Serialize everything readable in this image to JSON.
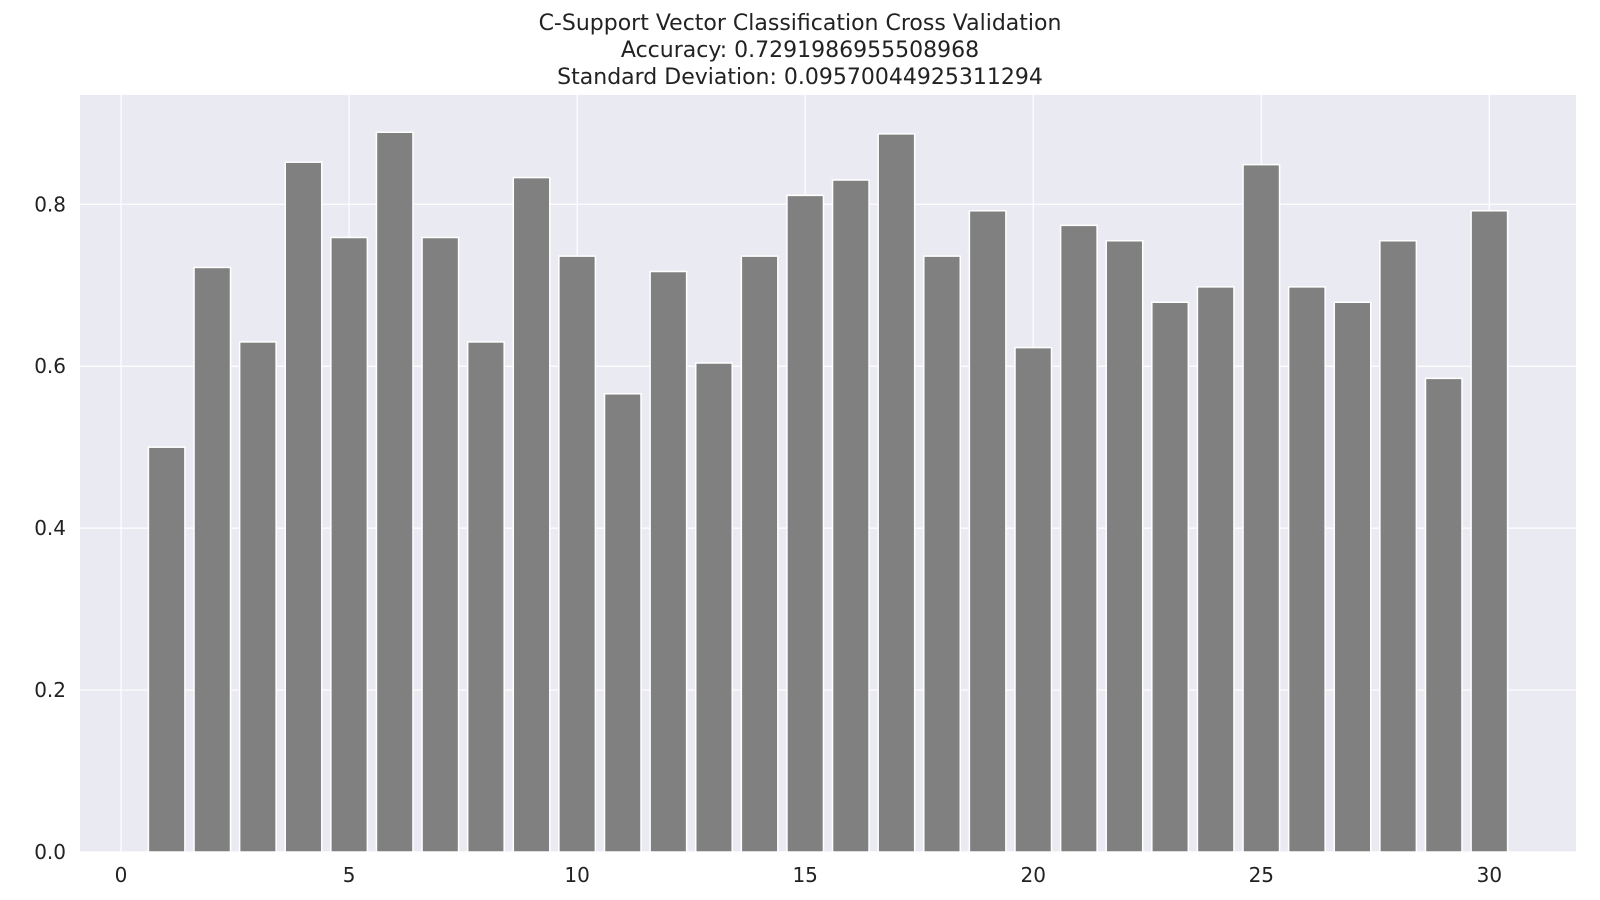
{
  "chart_data": {
    "type": "bar",
    "title": "C-Support Vector Classification Cross Validation",
    "subtitle_lines": [
      "Accuracy: 0.7291986955508968",
      "Standard Deviation: 0.09570044925311294"
    ],
    "xlabel": "",
    "ylabel": "",
    "x": [
      1,
      2,
      3,
      4,
      5,
      6,
      7,
      8,
      9,
      10,
      11,
      12,
      13,
      14,
      15,
      16,
      17,
      18,
      19,
      20,
      21,
      22,
      23,
      24,
      25,
      26,
      27,
      28,
      29,
      30
    ],
    "values": [
      0.5,
      0.722,
      0.63,
      0.852,
      0.759,
      0.889,
      0.759,
      0.63,
      0.833,
      0.736,
      0.566,
      0.717,
      0.604,
      0.736,
      0.811,
      0.83,
      0.887,
      0.736,
      0.792,
      0.623,
      0.774,
      0.755,
      0.679,
      0.698,
      0.849,
      0.698,
      0.679,
      0.755,
      0.585,
      0.792
    ],
    "xlim": [
      -0.9,
      31.9
    ],
    "ylim": [
      0,
      0.935
    ],
    "xticks": [
      0,
      5,
      10,
      15,
      20,
      25,
      30
    ],
    "yticks": [
      0.0,
      0.2,
      0.4,
      0.6,
      0.8
    ],
    "ytick_labels": [
      "0.0",
      "0.2",
      "0.4",
      "0.6",
      "0.8"
    ],
    "grid": true,
    "colors": {
      "background": "#eaeaf2",
      "bar": "#808080",
      "bar_edge": "#ffffff",
      "grid": "#ffffff"
    }
  }
}
